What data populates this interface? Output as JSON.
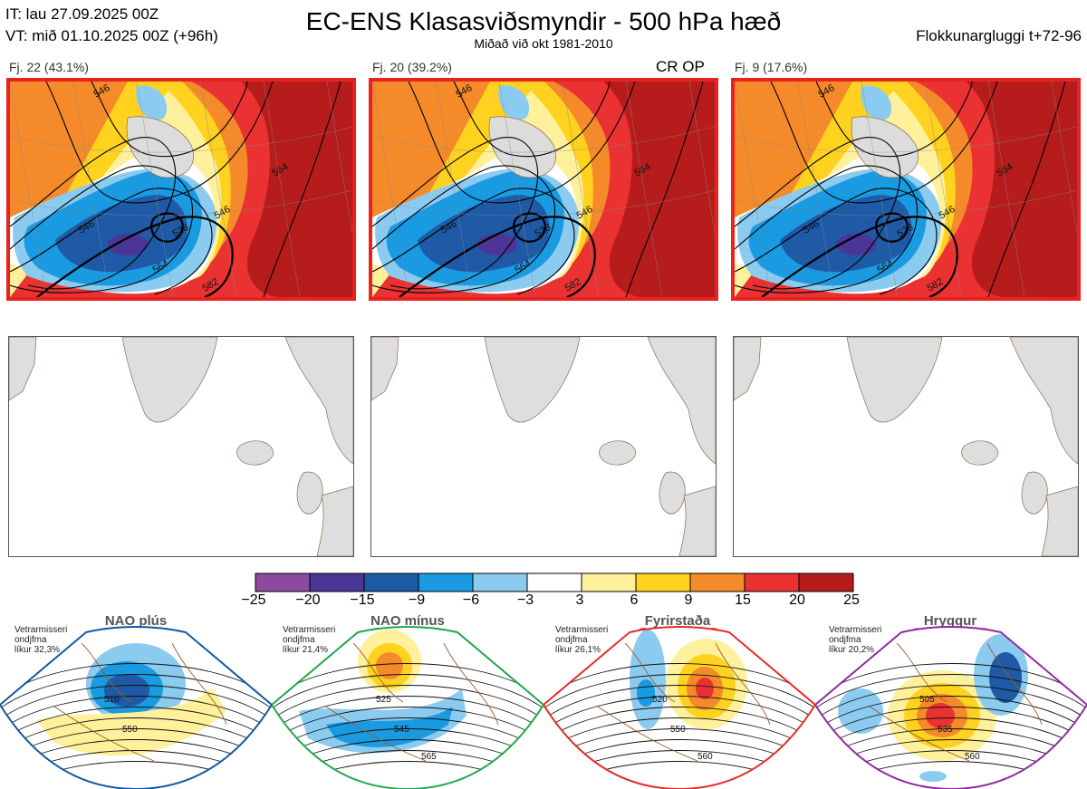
{
  "header": {
    "it_line": "IT: lau 27.09.2025 00Z",
    "vt_line": "VT: mið 01.10.2025 00Z  (+96h)",
    "title": "EC-ENS Klasasviðsmyndir - 500 hPa hæð",
    "subtitle": "Miðað við okt 1981-2010",
    "window": "Flokkunargluggi t+72-96"
  },
  "clusters": [
    {
      "label": "Fj. 22 (43.1%)",
      "badge": "",
      "contours": [
        "546",
        "564",
        "528",
        "546",
        "564",
        "582",
        "546"
      ]
    },
    {
      "label": "Fj. 20 (39.2%)",
      "badge": "CR OP",
      "contours": [
        "546",
        "564",
        "528",
        "546",
        "564",
        "582",
        "546"
      ]
    },
    {
      "label": "Fj. 9 (17.6%)",
      "badge": "",
      "contours": [
        "546",
        "564",
        "528",
        "546",
        "564",
        "582",
        "546"
      ]
    }
  ],
  "colorbar": {
    "ticks": [
      "−25",
      "−20",
      "−15",
      "−9",
      "−6",
      "−3",
      "3",
      "6",
      "9",
      "15",
      "20",
      "25"
    ],
    "colors": [
      "#8c4a9e",
      "#4b3597",
      "#1e5aa6",
      "#1a9ae0",
      "#8ccbf0",
      "#ffffff",
      "#fff19b",
      "#ffd21f",
      "#f58a2a",
      "#ea3232",
      "#b71c1c"
    ]
  },
  "regimes": [
    {
      "name": "NAO plús",
      "note": [
        "Vetrarmisseri",
        "ondjfma",
        "líkur 32,3%"
      ],
      "color": "#0d59a8",
      "contours": [
        "510",
        "550"
      ]
    },
    {
      "name": "NAO mínus",
      "note": [
        "Vetrarmisseri",
        "ondjfma",
        "líkur 21,4%"
      ],
      "color": "#1fa84a",
      "contours": [
        "525",
        "545",
        "565"
      ]
    },
    {
      "name": "Fyrirstaða",
      "note": [
        "Vetrarmisseri",
        "ondjfma",
        "líkur 26,1%"
      ],
      "color": "#e82a2a",
      "contours": [
        "520",
        "550",
        "560"
      ]
    },
    {
      "name": "Hryggur",
      "note": [
        "Vetrarmisseri",
        "ondjfma",
        "líkur 20,2%"
      ],
      "color": "#8e2a9e",
      "contours": [
        "505",
        "535",
        "560"
      ]
    }
  ]
}
